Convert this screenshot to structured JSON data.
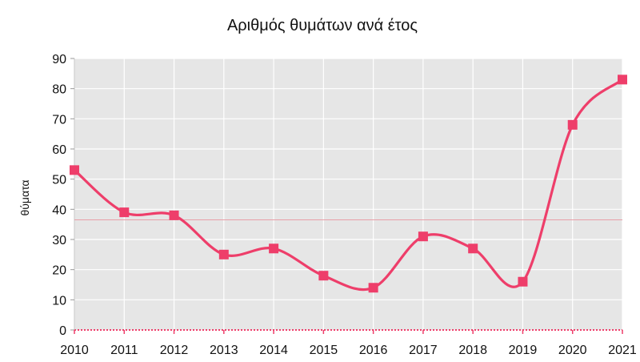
{
  "chart_data": {
    "type": "line",
    "title": "Αριθμός θυμάτων ανά έτος",
    "xlabel": "",
    "ylabel": "θύματα",
    "categories": [
      "2010",
      "2011",
      "2012",
      "2013",
      "2014",
      "2015",
      "2016",
      "2017",
      "2018",
      "2019",
      "2020",
      "2021"
    ],
    "series": [
      {
        "values": [
          53,
          39,
          38,
          25,
          27,
          18,
          14,
          31,
          27,
          16,
          68,
          83
        ]
      }
    ],
    "ylim": [
      0,
      90
    ],
    "y_ticks": [
      "0",
      "10",
      "20",
      "30",
      "40",
      "50",
      "60",
      "70",
      "80",
      "90"
    ],
    "reference_line": 36.5,
    "grid": true,
    "smooth": true,
    "markers": "square",
    "colors": {
      "series": "#ee3e6a",
      "reference_line": "#e8a0a8",
      "plot_background": "#e6e6e6",
      "grid": "#ffffff",
      "axis_baseline": "#ee3e6a"
    }
  }
}
